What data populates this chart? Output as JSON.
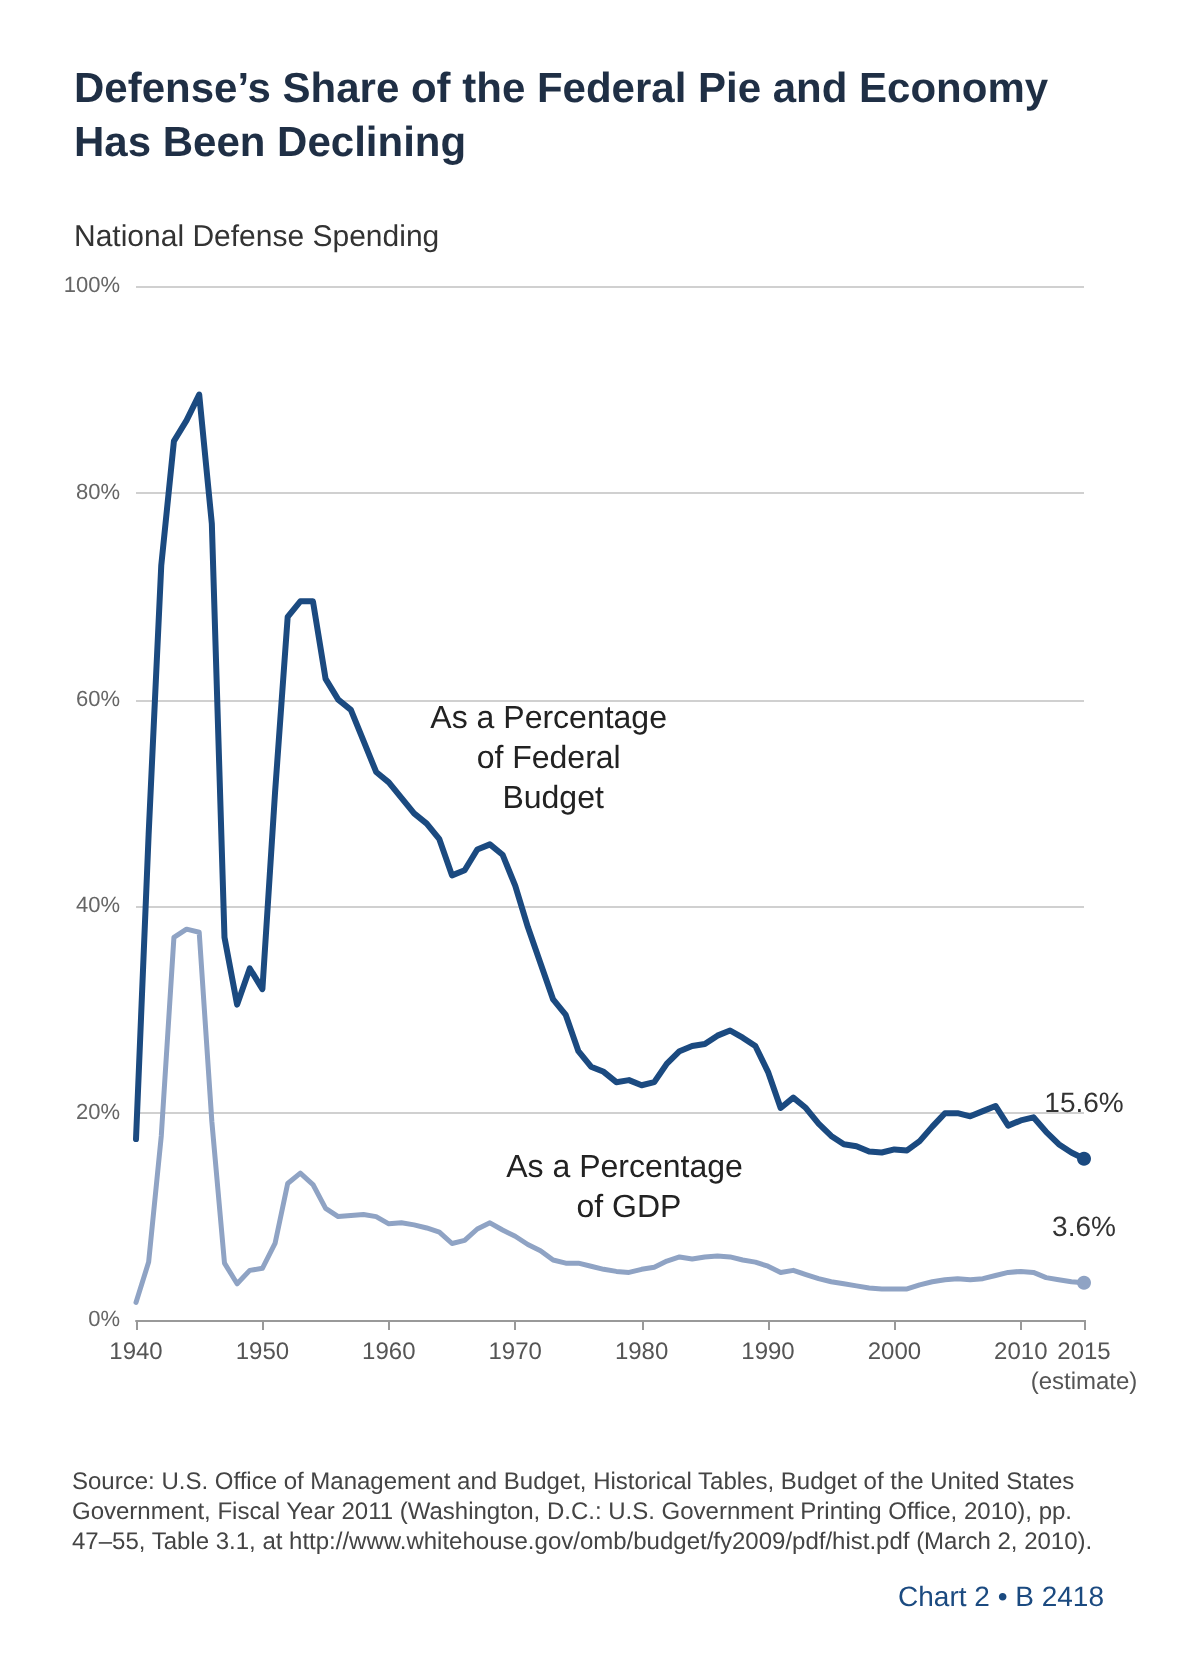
{
  "chart_data": {
    "type": "line",
    "title": "Defense’s Share of the Federal Pie and Economy\nHas Been Declining",
    "subtitle": "National Defense Spending",
    "x": [
      1940,
      1941,
      1942,
      1943,
      1944,
      1945,
      1946,
      1947,
      1948,
      1949,
      1950,
      1951,
      1952,
      1953,
      1954,
      1955,
      1956,
      1957,
      1958,
      1959,
      1960,
      1961,
      1962,
      1963,
      1964,
      1965,
      1966,
      1967,
      1968,
      1969,
      1970,
      1971,
      1972,
      1973,
      1974,
      1975,
      1976,
      1977,
      1978,
      1979,
      1980,
      1981,
      1982,
      1983,
      1984,
      1985,
      1986,
      1987,
      1988,
      1989,
      1990,
      1991,
      1992,
      1993,
      1994,
      1995,
      1996,
      1997,
      1998,
      1999,
      2000,
      2001,
      2002,
      2003,
      2004,
      2005,
      2006,
      2007,
      2008,
      2009,
      2010,
      2011,
      2012,
      2013,
      2014,
      2015
    ],
    "series": [
      {
        "name": "As a Percentage of Federal Budget",
        "color": "#1b4a80",
        "values": [
          17.5,
          47,
          73,
          85,
          87,
          89.5,
          77,
          37,
          30.5,
          34,
          32,
          51,
          68,
          69.5,
          69.5,
          62,
          60,
          59,
          56,
          53,
          52,
          50.5,
          49,
          48,
          46.5,
          43,
          43.5,
          45.5,
          46,
          45,
          42,
          38,
          34.5,
          31,
          29.5,
          26,
          24.5,
          24,
          23,
          23.2,
          22.7,
          23,
          24.8,
          26,
          26.5,
          26.7,
          27.5,
          28,
          27.3,
          26.5,
          24,
          20.5,
          21.5,
          20.5,
          19,
          17.8,
          17,
          16.8,
          16.3,
          16.2,
          16.5,
          16.4,
          17.3,
          18.7,
          20,
          20,
          19.7,
          20.2,
          20.7,
          18.8,
          19.3,
          19.6,
          18.2,
          17,
          16.2,
          15.6
        ],
        "value_labels": [
          null,
          null,
          null,
          null,
          null,
          null,
          null,
          null,
          null,
          null,
          null,
          null,
          null,
          null,
          null,
          null,
          null,
          null,
          null,
          null,
          null,
          null,
          null,
          null,
          null,
          null,
          null,
          null,
          null,
          null,
          null,
          null,
          null,
          null,
          null,
          null,
          null,
          null,
          null,
          null,
          null,
          null,
          null,
          null,
          null,
          null,
          null,
          null,
          null,
          null,
          null,
          null,
          null,
          null,
          null,
          null,
          null,
          null,
          null,
          null,
          null,
          null,
          null,
          null,
          null,
          null,
          null,
          null,
          null,
          null,
          null,
          null,
          null,
          null,
          null,
          "15.6%"
        ]
      },
      {
        "name": "As a Percentage of GDP",
        "color": "#8fa3c4",
        "values": [
          1.7,
          5.6,
          17.8,
          37,
          37.8,
          37.5,
          19.2,
          5.5,
          3.5,
          4.8,
          5,
          7.4,
          13.2,
          14.2,
          13.1,
          10.8,
          10,
          10.1,
          10.2,
          10,
          9.3,
          9.4,
          9.2,
          8.9,
          8.5,
          7.4,
          7.7,
          8.8,
          9.4,
          8.7,
          8.1,
          7.3,
          6.7,
          5.8,
          5.5,
          5.5,
          5.2,
          4.9,
          4.7,
          4.6,
          4.9,
          5.1,
          5.7,
          6.1,
          5.9,
          6.1,
          6.2,
          6.1,
          5.8,
          5.6,
          5.2,
          4.6,
          4.8,
          4.4,
          4,
          3.7,
          3.5,
          3.3,
          3.1,
          3,
          3,
          3,
          3.4,
          3.7,
          3.9,
          4,
          3.9,
          4,
          4.3,
          4.6,
          4.7,
          4.6,
          4.1,
          3.9,
          3.7,
          3.6
        ],
        "value_labels": [
          null,
          null,
          null,
          null,
          null,
          null,
          null,
          null,
          null,
          null,
          null,
          null,
          null,
          null,
          null,
          null,
          null,
          null,
          null,
          null,
          null,
          null,
          null,
          null,
          null,
          null,
          null,
          null,
          null,
          null,
          null,
          null,
          null,
          null,
          null,
          null,
          null,
          null,
          null,
          null,
          null,
          null,
          null,
          null,
          null,
          null,
          null,
          null,
          null,
          null,
          null,
          null,
          null,
          null,
          null,
          null,
          null,
          null,
          null,
          null,
          null,
          null,
          null,
          null,
          null,
          null,
          null,
          null,
          null,
          null,
          null,
          null,
          null,
          null,
          null,
          "3.6%"
        ]
      }
    ],
    "xlim": [
      1940,
      2015
    ],
    "xticks": [
      1940,
      1950,
      1960,
      1970,
      1980,
      1990,
      2000,
      2010,
      {
        "value": 2015,
        "label": "2015\n(estimate)"
      }
    ],
    "ylim": [
      0,
      100
    ],
    "yticks": [
      {
        "value": 0,
        "label": "0%"
      },
      {
        "value": 20,
        "label": "20%"
      },
      {
        "value": 40,
        "label": "40%"
      },
      {
        "value": 60,
        "label": "60%"
      },
      {
        "value": 80,
        "label": "80%"
      },
      {
        "value": 100,
        "label": "100%"
      }
    ],
    "grid": "y",
    "legend": false,
    "line_style": "solid",
    "annotations": [
      "Source: U.S. Office of Management and Budget, Historical Tables, Budget of the United States Government, Fiscal Year 2011 (Washington, D.C.: U.S. Government Printing Office, 2010), pp. 47–55, Table 3.1, at http://www.whitehouse.gov/omb/budget/fy2009/pdf/hist.pdf (March 2, 2010).",
      "Chart 2 • B 2418"
    ]
  }
}
